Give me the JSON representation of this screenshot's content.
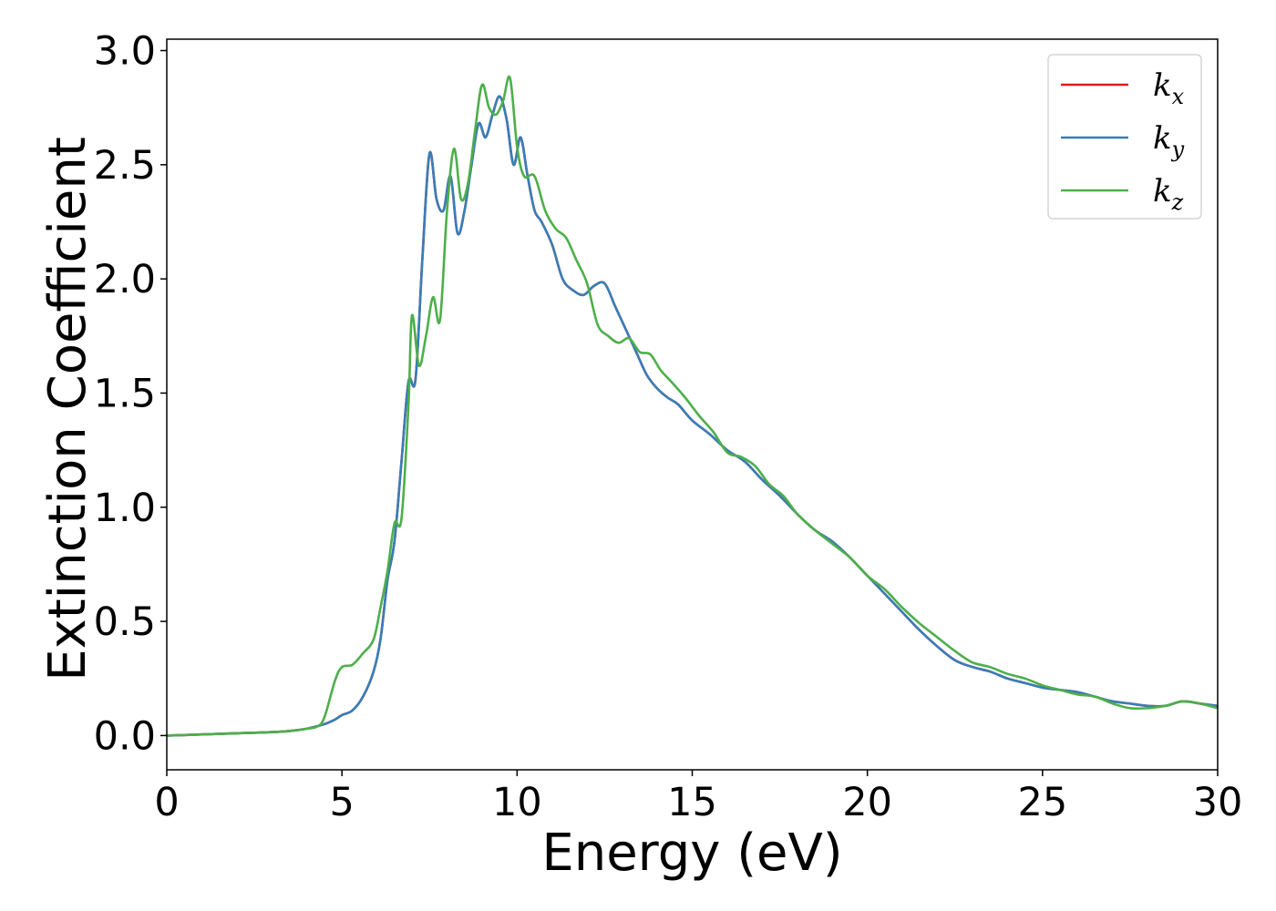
{
  "chart_data": {
    "type": "line",
    "title": "",
    "xlabel": "Energy (eV)",
    "ylabel": "Extinction Coefficient",
    "xlim": [
      0,
      30
    ],
    "ylim": [
      -0.15,
      3.05
    ],
    "xticks": [
      0,
      5,
      10,
      15,
      20,
      25,
      30
    ],
    "xtick_labels": [
      "0",
      "5",
      "10",
      "15",
      "20",
      "25",
      "30"
    ],
    "yticks": [
      0.0,
      0.5,
      1.0,
      1.5,
      2.0,
      2.5,
      3.0
    ],
    "ytick_labels": [
      "0.0",
      "0.5",
      "1.0",
      "1.5",
      "2.0",
      "2.5",
      "3.0"
    ],
    "grid": false,
    "legend_position": "top-right",
    "series": [
      {
        "name": "k",
        "subscript": "x",
        "color": "#e41a1c",
        "x": [
          0,
          1,
          2,
          3,
          3.5,
          4,
          4.5,
          4.8,
          5,
          5.3,
          5.6,
          5.9,
          6.1,
          6.3,
          6.5,
          6.7,
          6.9,
          7.1,
          7.3,
          7.5,
          7.7,
          7.9,
          8.1,
          8.3,
          8.5,
          8.7,
          8.9,
          9.1,
          9.3,
          9.5,
          9.7,
          9.9,
          10.1,
          10.3,
          10.5,
          10.7,
          11,
          11.3,
          11.6,
          11.9,
          12.2,
          12.5,
          12.8,
          13.1,
          13.4,
          13.7,
          14,
          14.3,
          14.6,
          15,
          15.5,
          16,
          16.5,
          17,
          17.5,
          18,
          18.5,
          19,
          19.5,
          20,
          20.5,
          21,
          21.5,
          22,
          22.5,
          23,
          23.5,
          24,
          24.5,
          25,
          25.5,
          26,
          26.5,
          27,
          27.5,
          28,
          28.5,
          29,
          29.5,
          30
        ],
        "y": [
          0,
          0.005,
          0.01,
          0.015,
          0.02,
          0.03,
          0.05,
          0.07,
          0.09,
          0.11,
          0.17,
          0.28,
          0.42,
          0.68,
          0.85,
          1.2,
          1.55,
          1.56,
          2.1,
          2.55,
          2.35,
          2.3,
          2.45,
          2.2,
          2.3,
          2.5,
          2.68,
          2.62,
          2.72,
          2.8,
          2.7,
          2.5,
          2.62,
          2.45,
          2.3,
          2.25,
          2.15,
          2.0,
          1.95,
          1.93,
          1.97,
          1.98,
          1.88,
          1.78,
          1.68,
          1.58,
          1.52,
          1.48,
          1.45,
          1.38,
          1.32,
          1.25,
          1.2,
          1.12,
          1.05,
          0.97,
          0.9,
          0.85,
          0.78,
          0.7,
          0.62,
          0.54,
          0.46,
          0.39,
          0.33,
          0.3,
          0.28,
          0.25,
          0.23,
          0.21,
          0.2,
          0.19,
          0.17,
          0.15,
          0.14,
          0.13,
          0.13,
          0.15,
          0.14,
          0.13
        ]
      },
      {
        "name": "k",
        "subscript": "y",
        "color": "#377eb8",
        "x": [
          0,
          1,
          2,
          3,
          3.5,
          4,
          4.5,
          4.8,
          5,
          5.3,
          5.6,
          5.9,
          6.1,
          6.3,
          6.5,
          6.7,
          6.9,
          7.1,
          7.3,
          7.5,
          7.7,
          7.9,
          8.1,
          8.3,
          8.5,
          8.7,
          8.9,
          9.1,
          9.3,
          9.5,
          9.7,
          9.9,
          10.1,
          10.3,
          10.5,
          10.7,
          11,
          11.3,
          11.6,
          11.9,
          12.2,
          12.5,
          12.8,
          13.1,
          13.4,
          13.7,
          14,
          14.3,
          14.6,
          15,
          15.5,
          16,
          16.5,
          17,
          17.5,
          18,
          18.5,
          19,
          19.5,
          20,
          20.5,
          21,
          21.5,
          22,
          22.5,
          23,
          23.5,
          24,
          24.5,
          25,
          25.5,
          26,
          26.5,
          27,
          27.5,
          28,
          28.5,
          29,
          29.5,
          30
        ],
        "y": [
          0,
          0.005,
          0.01,
          0.015,
          0.02,
          0.03,
          0.05,
          0.07,
          0.09,
          0.11,
          0.17,
          0.28,
          0.42,
          0.68,
          0.85,
          1.2,
          1.55,
          1.56,
          2.1,
          2.55,
          2.35,
          2.3,
          2.45,
          2.2,
          2.3,
          2.5,
          2.68,
          2.62,
          2.72,
          2.8,
          2.7,
          2.5,
          2.62,
          2.45,
          2.3,
          2.25,
          2.15,
          2.0,
          1.95,
          1.93,
          1.97,
          1.98,
          1.88,
          1.78,
          1.68,
          1.58,
          1.52,
          1.48,
          1.45,
          1.38,
          1.32,
          1.25,
          1.2,
          1.12,
          1.05,
          0.97,
          0.9,
          0.85,
          0.78,
          0.7,
          0.62,
          0.54,
          0.46,
          0.39,
          0.33,
          0.3,
          0.28,
          0.25,
          0.23,
          0.21,
          0.2,
          0.19,
          0.17,
          0.15,
          0.14,
          0.13,
          0.13,
          0.15,
          0.14,
          0.13
        ]
      },
      {
        "name": "k",
        "subscript": "z",
        "color": "#4daf4a",
        "x": [
          0,
          1,
          2,
          3,
          3.5,
          4,
          4.3,
          4.5,
          4.8,
          5,
          5.3,
          5.6,
          5.9,
          6.1,
          6.3,
          6.5,
          6.7,
          6.9,
          7.0,
          7.2,
          7.4,
          7.6,
          7.8,
          8.0,
          8.2,
          8.4,
          8.6,
          8.8,
          9.0,
          9.2,
          9.4,
          9.6,
          9.8,
          10.0,
          10.2,
          10.5,
          10.8,
          11.1,
          11.4,
          11.7,
          12.0,
          12.3,
          12.6,
          12.9,
          13.2,
          13.5,
          13.8,
          14.1,
          14.4,
          14.8,
          15.2,
          15.6,
          16.0,
          16.4,
          16.8,
          17.2,
          17.6,
          18.0,
          18.5,
          19,
          19.5,
          20,
          20.5,
          21,
          21.5,
          22,
          22.5,
          23,
          23.5,
          24,
          24.5,
          25,
          25.5,
          26,
          26.5,
          27,
          27.5,
          28,
          28.5,
          29,
          29.5,
          30
        ],
        "y": [
          0,
          0.005,
          0.01,
          0.015,
          0.02,
          0.03,
          0.04,
          0.08,
          0.24,
          0.3,
          0.31,
          0.36,
          0.42,
          0.56,
          0.72,
          0.93,
          0.95,
          1.45,
          1.84,
          1.62,
          1.75,
          1.92,
          1.82,
          2.3,
          2.57,
          2.35,
          2.42,
          2.65,
          2.85,
          2.75,
          2.72,
          2.78,
          2.88,
          2.58,
          2.45,
          2.45,
          2.3,
          2.22,
          2.18,
          2.08,
          1.98,
          1.8,
          1.75,
          1.72,
          1.74,
          1.68,
          1.67,
          1.6,
          1.55,
          1.48,
          1.4,
          1.33,
          1.24,
          1.22,
          1.18,
          1.1,
          1.05,
          0.97,
          0.9,
          0.84,
          0.78,
          0.7,
          0.64,
          0.56,
          0.49,
          0.43,
          0.37,
          0.32,
          0.3,
          0.27,
          0.25,
          0.22,
          0.2,
          0.18,
          0.17,
          0.14,
          0.12,
          0.12,
          0.13,
          0.15,
          0.14,
          0.12
        ]
      }
    ]
  }
}
